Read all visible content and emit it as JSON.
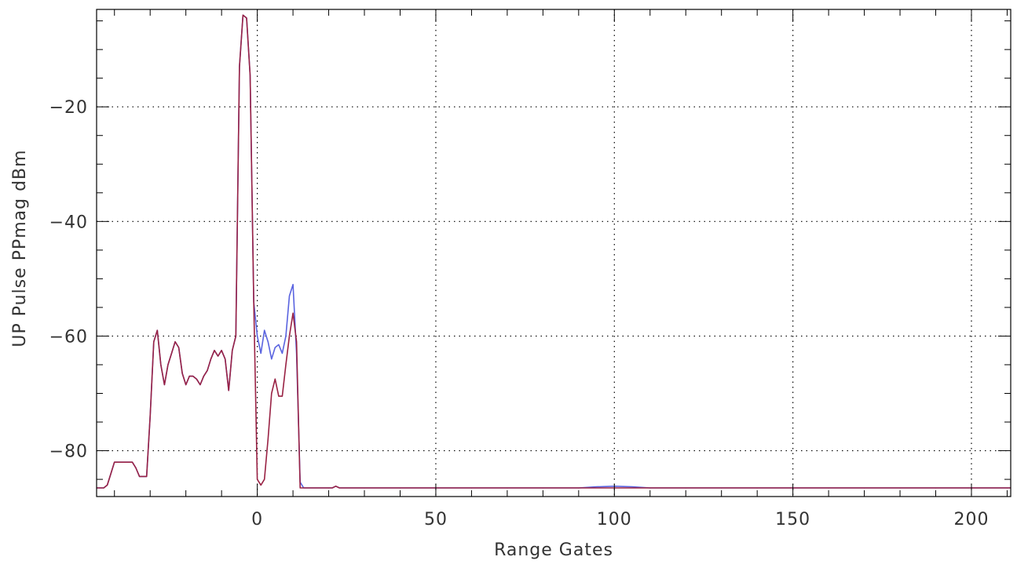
{
  "chart_data": {
    "type": "line",
    "xlabel": "Range Gates",
    "ylabel": "UP Pulse PPmag dBm",
    "xlim": [
      -45,
      211
    ],
    "ylim": [
      -88,
      -3
    ],
    "xticks": [
      0,
      50,
      100,
      150,
      200
    ],
    "xtick_labels": [
      "0",
      "50",
      "100",
      "150",
      "200"
    ],
    "yticks": [
      -20,
      -40,
      -60,
      -80
    ],
    "ytick_labels": [
      "−20",
      "−40",
      "−60",
      "−80"
    ],
    "x_minor_step": 10,
    "y_minor_step": 5,
    "grid": true,
    "legend": "none",
    "series": [
      {
        "color": "#5a64e0",
        "x": [
          -45,
          -43,
          -42,
          -41,
          -40,
          -39,
          -37,
          -35,
          -34,
          -33,
          -31,
          -30,
          -29,
          -28,
          -27,
          -26,
          -25,
          -24,
          -23,
          -22,
          -21,
          -20,
          -19,
          -18,
          -17,
          -16,
          -15,
          -14,
          -13,
          -12,
          -11,
          -10,
          -9,
          -8,
          -7,
          -6,
          -5,
          -4,
          -3,
          -2,
          -1,
          0,
          1,
          2,
          3,
          4,
          5,
          6,
          7,
          8,
          9,
          10,
          11,
          12,
          13,
          15,
          17,
          19,
          21,
          22,
          23,
          25,
          30,
          40,
          50,
          60,
          70,
          80,
          90,
          95,
          100,
          105,
          110,
          120,
          130,
          140,
          150,
          160,
          170,
          180,
          190,
          200,
          211
        ],
        "values": [
          -86.5,
          -86.5,
          -86,
          -84,
          -82,
          -82,
          -82,
          -82,
          -83,
          -84.5,
          -84.5,
          -74,
          -61,
          -59,
          -65,
          -68.5,
          -65,
          -63,
          -61,
          -62,
          -66.5,
          -68.5,
          -67,
          -67,
          -67.5,
          -68.5,
          -67,
          -66,
          -64,
          -62.5,
          -63.5,
          -62.5,
          -64,
          -69.5,
          -62.5,
          -60,
          -13,
          -4,
          -4.5,
          -14.5,
          -54,
          -60,
          -63,
          -59,
          -61,
          -64,
          -62,
          -61.5,
          -63,
          -60,
          -53,
          -51,
          -63,
          -85.5,
          -86.5,
          -86.5,
          -86.5,
          -86.5,
          -86.5,
          -86.2,
          -86.5,
          -86.5,
          -86.5,
          -86.5,
          -86.5,
          -86.5,
          -86.5,
          -86.5,
          -86.5,
          -86.3,
          -86.2,
          -86.3,
          -86.5,
          -86.5,
          -86.5,
          -86.5,
          -86.5,
          -86.5,
          -86.5,
          -86.5,
          -86.5,
          -86.5,
          -86.5
        ]
      },
      {
        "color": "#992244",
        "x": [
          -45,
          -43,
          -42,
          -41,
          -40,
          -39,
          -37,
          -35,
          -34,
          -33,
          -31,
          -30,
          -29,
          -28,
          -27,
          -26,
          -25,
          -24,
          -23,
          -22,
          -21,
          -20,
          -19,
          -18,
          -17,
          -16,
          -15,
          -14,
          -13,
          -12,
          -11,
          -10,
          -9,
          -8,
          -7,
          -6,
          -5,
          -4,
          -3,
          -2,
          -1,
          0,
          1,
          2,
          3,
          4,
          5,
          6,
          7,
          8,
          9,
          10,
          11,
          12,
          13,
          15,
          17,
          19,
          21,
          22,
          23,
          25,
          30,
          40,
          50,
          60,
          70,
          80,
          90,
          95,
          100,
          105,
          110,
          120,
          130,
          140,
          150,
          160,
          170,
          180,
          190,
          200,
          211
        ],
        "values": [
          -86.5,
          -86.5,
          -86,
          -84,
          -82,
          -82,
          -82,
          -82,
          -83,
          -84.5,
          -84.5,
          -74,
          -61,
          -59,
          -65,
          -68.5,
          -65,
          -63,
          -61,
          -62,
          -66.5,
          -68.5,
          -67,
          -67,
          -67.5,
          -68.5,
          -67,
          -66,
          -64,
          -62.5,
          -63.5,
          -62.5,
          -64,
          -69.5,
          -62.5,
          -60,
          -13,
          -4,
          -4.5,
          -14.5,
          -54,
          -85,
          -86,
          -85,
          -78,
          -70,
          -67.5,
          -70.5,
          -70.5,
          -65,
          -60,
          -56,
          -61,
          -86.5,
          -86.5,
          -86.5,
          -86.5,
          -86.5,
          -86.5,
          -86.2,
          -86.5,
          -86.5,
          -86.5,
          -86.5,
          -86.5,
          -86.5,
          -86.5,
          -86.5,
          -86.5,
          -86.5,
          -86.5,
          -86.5,
          -86.5,
          -86.5,
          -86.5,
          -86.5,
          -86.5,
          -86.5,
          -86.5,
          -86.5,
          -86.5,
          -86.5,
          -86.5
        ]
      }
    ]
  }
}
